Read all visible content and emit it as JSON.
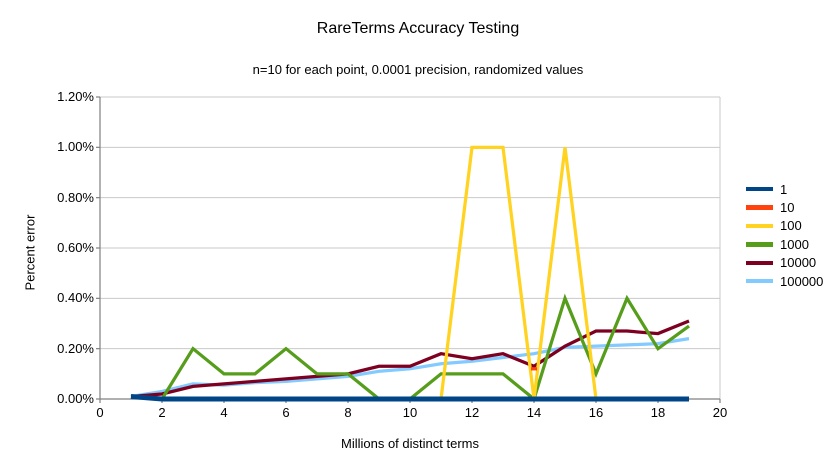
{
  "chart_data": {
    "type": "line",
    "title": "RareTerms Accuracy Testing",
    "subtitle": "n=10 for each point, 0.0001 precision, randomized values",
    "xlabel": "Millions of distinct terms",
    "ylabel": "Percent error",
    "xlim": [
      0,
      20
    ],
    "ylim_percent": [
      0,
      1.2
    ],
    "x_ticks": [
      0,
      2,
      4,
      6,
      8,
      10,
      12,
      14,
      16,
      18,
      20
    ],
    "y_ticks": [
      "0.00%",
      "0.20%",
      "0.40%",
      "0.60%",
      "0.80%",
      "1.00%",
      "1.20%"
    ],
    "grid": "horizontal",
    "legend_position": "right",
    "x": [
      1,
      2,
      3,
      4,
      5,
      6,
      7,
      8,
      9,
      10,
      11,
      12,
      13,
      14,
      15,
      16,
      17,
      18,
      19
    ],
    "series": [
      {
        "name": "1",
        "color": "#004586",
        "values": [
          0.01,
          0,
          0,
          0,
          0,
          0,
          0,
          0,
          0,
          0,
          0,
          0,
          0,
          0,
          0,
          0,
          0,
          0,
          0
        ]
      },
      {
        "name": "10",
        "color": "#ff420e",
        "values": [
          null,
          null,
          null,
          null,
          null,
          null,
          null,
          null,
          null,
          null,
          null,
          null,
          null,
          0.12,
          null,
          null,
          null,
          null,
          null
        ]
      },
      {
        "name": "100",
        "color": "#ffd320",
        "values": [
          null,
          null,
          null,
          null,
          null,
          null,
          null,
          null,
          null,
          null,
          0,
          1.0,
          1.0,
          0,
          1.0,
          0,
          null,
          null,
          null
        ]
      },
      {
        "name": "1000",
        "color": "#579d1c",
        "values": [
          0.01,
          0,
          0.2,
          0.1,
          0.1,
          0.2,
          0.1,
          0.1,
          0,
          0,
          0.1,
          0.1,
          0.1,
          0,
          0.4,
          0.1,
          0.4,
          0.2,
          0.29
        ]
      },
      {
        "name": "10000",
        "color": "#7e0021",
        "values": [
          0.01,
          0.02,
          0.05,
          0.06,
          0.07,
          0.08,
          0.09,
          0.1,
          0.13,
          0.13,
          0.18,
          0.16,
          0.18,
          0.13,
          0.21,
          0.27,
          0.27,
          0.26,
          0.31
        ]
      },
      {
        "name": "100000",
        "color": "#83caff",
        "values": [
          0.01,
          0.03,
          0.06,
          0.055,
          0.065,
          0.07,
          0.08,
          0.09,
          0.11,
          0.12,
          0.14,
          0.15,
          0.165,
          0.18,
          0.205,
          0.21,
          0.215,
          0.22,
          0.24
        ]
      }
    ],
    "colors": {
      "gridline": "#c9c9c9",
      "axis": "#808080",
      "background": "#ffffff"
    }
  }
}
